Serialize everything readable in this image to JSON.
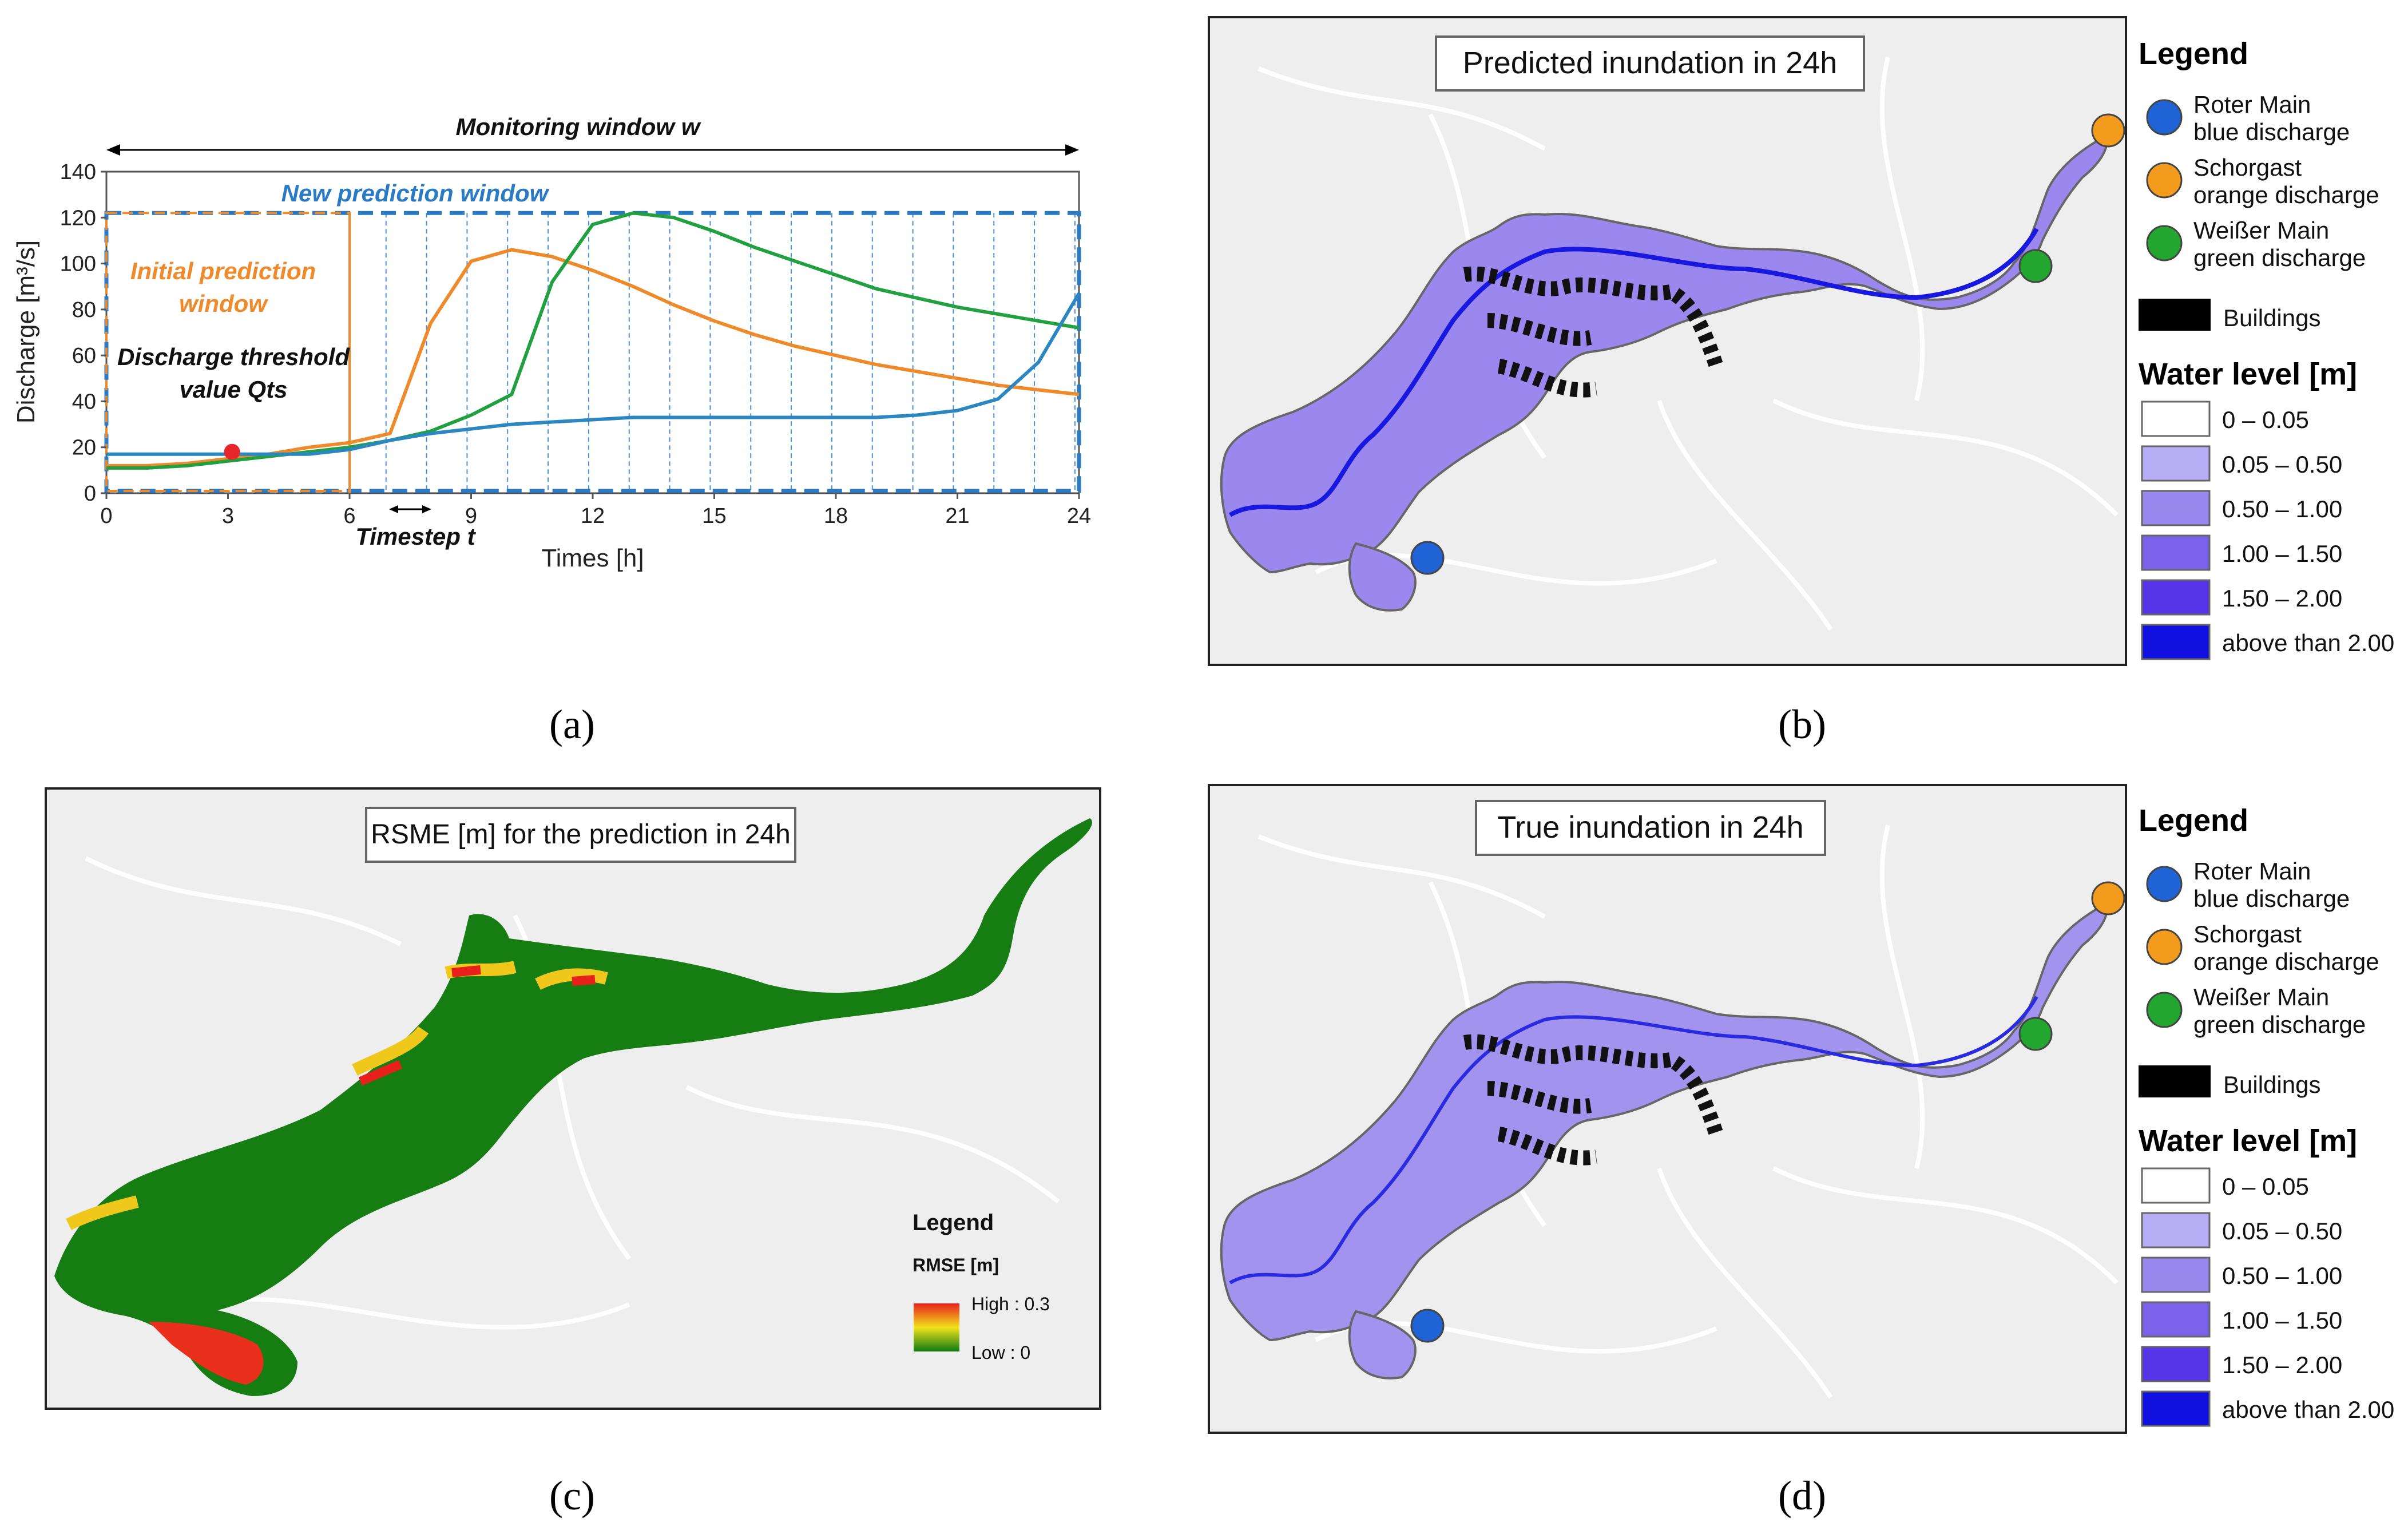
{
  "panel_labels": [
    "(a)",
    "(b)",
    "(c)",
    "(d)"
  ],
  "chart_data": {
    "type": "line",
    "xlabel": "Times [h]",
    "ylabel": "Discharge [m³/s]",
    "xlim": [
      0,
      24
    ],
    "ylim": [
      0,
      140
    ],
    "xticks": [
      0,
      3,
      6,
      9,
      12,
      15,
      18,
      21,
      24
    ],
    "yticks": [
      0,
      20,
      40,
      60,
      80,
      100,
      120,
      140
    ],
    "series": [
      {
        "color": "#ef8a2a",
        "x": [
          0,
          1,
          2,
          3,
          4,
          5,
          6,
          7,
          8,
          9,
          10,
          11,
          12,
          13,
          14,
          15,
          16,
          17,
          18,
          19,
          20,
          21,
          22,
          23,
          24
        ],
        "values": [
          12,
          12,
          13,
          15,
          17,
          20,
          22,
          26,
          74,
          101,
          106,
          103,
          97,
          90,
          82,
          75,
          69,
          64,
          60,
          56,
          53,
          50,
          47,
          45,
          43
        ]
      },
      {
        "color": "#21a03f",
        "x": [
          0,
          1,
          2,
          3,
          4,
          5,
          6,
          7,
          8,
          9,
          10,
          11,
          12,
          13,
          14,
          15,
          16,
          17,
          18,
          19,
          20,
          21,
          22,
          23,
          24
        ],
        "values": [
          11,
          11,
          12,
          14,
          16,
          18,
          20,
          23,
          27,
          34,
          43,
          92,
          117,
          122,
          120,
          114,
          107,
          101,
          95,
          89,
          85,
          81,
          78,
          75,
          72
        ]
      },
      {
        "color": "#2b87c1",
        "x": [
          0,
          1,
          2,
          3,
          4,
          5,
          6,
          7,
          8,
          9,
          10,
          11,
          12,
          13,
          14,
          15,
          16,
          17,
          18,
          19,
          20,
          21,
          22,
          23,
          24
        ],
        "values": [
          17,
          17,
          17,
          17,
          17,
          17,
          19,
          23,
          26,
          28,
          30,
          31,
          32,
          33,
          33,
          33,
          33,
          33,
          33,
          33,
          34,
          36,
          41,
          57,
          87
        ]
      }
    ],
    "marker": {
      "x": 3.1,
      "y": 18,
      "color": "#e8252a"
    },
    "vlines": [
      6.9,
      7.9,
      8.9,
      9.9,
      10.9,
      11.9,
      12.9,
      13.9,
      14.9,
      15.9,
      16.9,
      17.9,
      18.9,
      19.9,
      20.9,
      21.9,
      22.9,
      23.9
    ],
    "annotations": {
      "monitoring": "Monitoring window w",
      "new_prediction": "New prediction window",
      "initial_prediction_1": "Initial prediction",
      "initial_prediction_2": "window",
      "threshold_1": "Discharge threshold",
      "threshold_2": "value Qts",
      "timestep": "Timestep t"
    }
  },
  "map_b": {
    "title": "Predicted inundation in 24h"
  },
  "map_d": {
    "title": "True inundation in 24h"
  },
  "map_c": {
    "title": "RSME [m] for the prediction in 24h",
    "legend_title": "Legend",
    "legend_sub": "RMSE [m]",
    "high": "High : 0.3",
    "low": "Low : 0"
  },
  "legend": {
    "title": "Legend",
    "gauges": [
      {
        "line1": "Roter Main",
        "line2": "blue discharge",
        "color": "#1f63d6"
      },
      {
        "line1": "Schorgast",
        "line2": "orange discharge",
        "color": "#f39b1c"
      },
      {
        "line1": "Weißer Main",
        "line2": "green discharge",
        "color": "#22a630"
      }
    ],
    "buildings": "Buildings",
    "water_title": "Water level [m]",
    "classes": [
      {
        "label": "0 – 0.05",
        "color": "#ffffff"
      },
      {
        "label": "0.05 – 0.50",
        "color": "#b7aef5"
      },
      {
        "label": "0.50 – 1.00",
        "color": "#9888ee"
      },
      {
        "label": "1.00 – 1.50",
        "color": "#7a63ea"
      },
      {
        "label": "1.50 – 2.00",
        "color": "#5533e6"
      },
      {
        "label": "above than 2.00",
        "color": "#1010e0"
      }
    ]
  }
}
